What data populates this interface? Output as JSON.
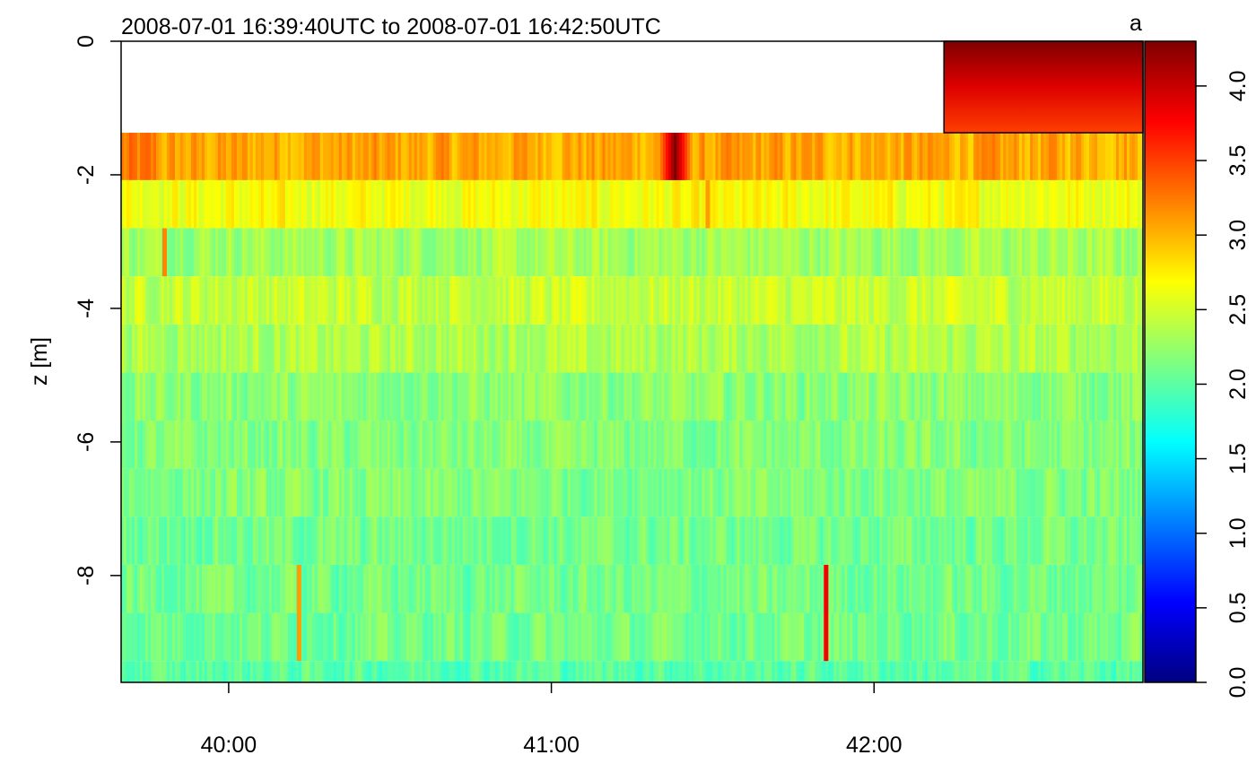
{
  "chart_data": {
    "type": "heatmap",
    "title": "2008-07-01 16:39:40UTC to 2008-07-01 16:42:50UTC",
    "panel_label": "a",
    "xlabel": "",
    "ylabel": "z [m]",
    "x_time_range": [
      "2008-07-01 16:39:40",
      "2008-07-01 16:42:50"
    ],
    "x_ticks": [
      {
        "time": "2008-07-01 16:40:00",
        "label": "40:00"
      },
      {
        "time": "2008-07-01 16:41:00",
        "label": "41:00"
      },
      {
        "time": "2008-07-01 16:42:00",
        "label": "42:00"
      }
    ],
    "ylim": [
      -9.6,
      0
    ],
    "y_ticks": [
      {
        "value": 0,
        "label": "0"
      },
      {
        "value": -2,
        "label": "-2"
      },
      {
        "value": -4,
        "label": "-4"
      },
      {
        "value": -6,
        "label": "-6"
      },
      {
        "value": -8,
        "label": "-8"
      }
    ],
    "depth_bins": [
      {
        "z_top": -1.37,
        "z_bottom": -2.08,
        "typical_value": 3.05
      },
      {
        "z_top": -2.08,
        "z_bottom": -2.8,
        "typical_value": 2.65
      },
      {
        "z_top": -2.8,
        "z_bottom": -3.52,
        "typical_value": 2.3
      },
      {
        "z_top": -3.52,
        "z_bottom": -4.24,
        "typical_value": 2.45
      },
      {
        "z_top": -4.24,
        "z_bottom": -4.96,
        "typical_value": 2.35
      },
      {
        "z_top": -4.96,
        "z_bottom": -5.68,
        "typical_value": 2.2
      },
      {
        "z_top": -5.68,
        "z_bottom": -6.4,
        "typical_value": 2.15
      },
      {
        "z_top": -6.4,
        "z_bottom": -7.12,
        "typical_value": 2.15
      },
      {
        "z_top": -7.12,
        "z_bottom": -7.84,
        "typical_value": 2.1
      },
      {
        "z_top": -7.84,
        "z_bottom": -8.56,
        "typical_value": 2.1
      },
      {
        "z_top": -8.56,
        "z_bottom": -9.28,
        "typical_value": 2.1
      },
      {
        "z_top": -9.28,
        "z_bottom": -9.6,
        "typical_value": 2.0
      }
    ],
    "features": [
      {
        "description": "high-value streak",
        "time": "2008-07-01 16:41:23",
        "z_top": -1.37,
        "z_bottom": -2.08,
        "value": 4.3
      },
      {
        "description": "elevated values",
        "time": "2008-07-01 16:41:29",
        "z_top": -2.08,
        "z_bottom": -2.8,
        "value": 3.1
      },
      {
        "description": "red spike",
        "time": "2008-07-01 16:41:51",
        "z_top": -7.84,
        "z_bottom": -9.28,
        "value": 3.8
      },
      {
        "description": "orange spike",
        "time": "2008-07-01 16:40:13",
        "z_top": -7.84,
        "z_bottom": -9.28,
        "value": 3.1
      },
      {
        "description": "orange spike",
        "time": "2008-07-01 16:39:48",
        "z_top": -2.8,
        "z_bottom": -3.52,
        "value": 3.2
      }
    ],
    "inset_box": {
      "x_start": "2008-07-01 16:42:13",
      "x_end": "2008-07-01 16:42:50",
      "z_top": 0,
      "z_bottom": -1.37,
      "value_range": [
        3.5,
        4.3
      ]
    },
    "colorbar": {
      "range": [
        0,
        4.3
      ],
      "ticks": [
        {
          "value": 0,
          "label": "0.0"
        },
        {
          "value": 0.5,
          "label": "0.5"
        },
        {
          "value": 1.0,
          "label": "1.0"
        },
        {
          "value": 1.5,
          "label": "1.5"
        },
        {
          "value": 2.0,
          "label": "2.0"
        },
        {
          "value": 2.5,
          "label": "2.5"
        },
        {
          "value": 3.0,
          "label": "3.0"
        },
        {
          "value": 3.5,
          "label": "3.5"
        },
        {
          "value": 4.0,
          "label": "4.0"
        }
      ],
      "colors": [
        "#00007f",
        "#0000ff",
        "#007fff",
        "#00ffff",
        "#7fff7f",
        "#ffff00",
        "#ff7f00",
        "#ff0000",
        "#7f0000"
      ]
    }
  }
}
